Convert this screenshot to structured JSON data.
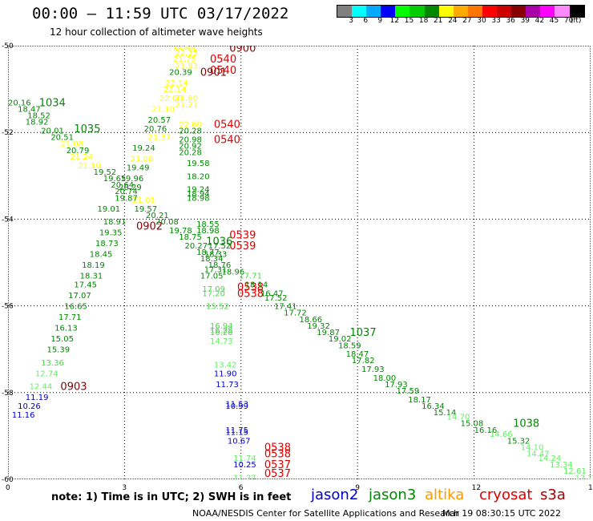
{
  "header": {
    "title": "00:00 – 11:59 UTC 03/17/2022",
    "subtitle": "12 hour collection of altimeter wave heights"
  },
  "colorbar": {
    "colors": [
      "#808080",
      "#00ffff",
      "#00aaff",
      "#0000ff",
      "#00ff00",
      "#00cc00",
      "#008800",
      "#ffff00",
      "#ffaa00",
      "#ff7700",
      "#ff0000",
      "#cc0000",
      "#880000",
      "#aa00aa",
      "#ff00ff",
      "#ff88ff",
      "#000000"
    ],
    "labels": [
      "3",
      "6",
      "9",
      "12",
      "15",
      "18",
      "21",
      "24",
      "27",
      "30",
      "33",
      "36",
      "39",
      "42",
      "45",
      "70",
      "(ft)"
    ]
  },
  "axes": {
    "x_ticks": [
      "0",
      "3",
      "6",
      "9",
      "12",
      "15"
    ],
    "y_ticks": [
      "-50",
      "-52",
      "-54",
      "-56",
      "-58",
      "-60"
    ]
  },
  "legend": {
    "note": "note:  1) Time is in UTC;  2) SWH is in feet",
    "satellites": [
      {
        "name": "jason2",
        "color": "#0000cc"
      },
      {
        "name": "jason3",
        "color": "#008800"
      },
      {
        "name": "altika",
        "color": "#ff9900"
      },
      {
        "name": "cryosat",
        "color": "#dd0000"
      },
      {
        "name": "s3a",
        "color": "#aa0000"
      }
    ],
    "credit": "NOAA/NESDIS Center for Satellite Applications and Research",
    "generated": "Mar 19 08:30:15 UTC 2022"
  },
  "map_data": {
    "lon_range": [
      0,
      15
    ],
    "lat_range": [
      -60,
      -50
    ],
    "stamps": [
      {
        "text": "0900",
        "lon": 5.7,
        "lat": -50.05,
        "color": "#880000"
      },
      {
        "text": "0540",
        "lon": 5.2,
        "lat": -50.3,
        "color": "#dd0000"
      },
      {
        "text": "0540",
        "lon": 5.2,
        "lat": -50.55,
        "color": "#dd0000"
      },
      {
        "text": "0901",
        "lon": 4.95,
        "lat": -50.6,
        "color": "#880000"
      },
      {
        "text": "0540",
        "lon": 5.3,
        "lat": -51.8,
        "color": "#dd0000"
      },
      {
        "text": "0540",
        "lon": 5.3,
        "lat": -52.15,
        "color": "#dd0000"
      },
      {
        "text": "1034",
        "lon": 0.8,
        "lat": -51.3,
        "color": "#008800"
      },
      {
        "text": "1035",
        "lon": 1.7,
        "lat": -51.9,
        "color": "#008800"
      },
      {
        "text": "0902",
        "lon": 3.3,
        "lat": -54.15,
        "color": "#880000"
      },
      {
        "text": "0539",
        "lon": 5.7,
        "lat": -54.35,
        "color": "#dd0000"
      },
      {
        "text": "0539",
        "lon": 5.7,
        "lat": -54.6,
        "color": "#dd0000"
      },
      {
        "text": "1036",
        "lon": 5.1,
        "lat": -54.5,
        "color": "#008800"
      },
      {
        "text": "0538",
        "lon": 5.9,
        "lat": -55.55,
        "color": "#dd0000"
      },
      {
        "text": "0538",
        "lon": 5.9,
        "lat": -55.7,
        "color": "#dd0000"
      },
      {
        "text": "1037",
        "lon": 8.8,
        "lat": -56.6,
        "color": "#008800"
      },
      {
        "text": "0903",
        "lon": 1.35,
        "lat": -57.85,
        "color": "#880000"
      },
      {
        "text": "1038",
        "lon": 13.0,
        "lat": -58.7,
        "color": "#008800"
      },
      {
        "text": "0538",
        "lon": 6.6,
        "lat": -59.25,
        "color": "#dd0000"
      },
      {
        "text": "0538",
        "lon": 6.6,
        "lat": -59.4,
        "color": "#dd0000"
      },
      {
        "text": "0537",
        "lon": 6.6,
        "lat": -59.65,
        "color": "#dd0000"
      },
      {
        "text": "0537",
        "lon": 6.6,
        "lat": -59.85,
        "color": "#dd0000"
      }
    ],
    "points": [
      {
        "text": "22.00",
        "lon": 4.25,
        "lat": -50.0,
        "color": "#ffff00"
      },
      {
        "text": "22.35",
        "lon": 4.3,
        "lat": -50.15,
        "color": "#ffff00"
      },
      {
        "text": "21.75",
        "lon": 4.25,
        "lat": -50.3,
        "color": "#ffff00"
      },
      {
        "text": "21.83",
        "lon": 4.3,
        "lat": -50.45,
        "color": "#ffff00"
      },
      {
        "text": "20.39",
        "lon": 4.15,
        "lat": -50.6,
        "color": "#008800"
      },
      {
        "text": "22.14",
        "lon": 4.05,
        "lat": -50.85,
        "color": "#ffff00"
      },
      {
        "text": "22.14",
        "lon": 4.0,
        "lat": -51.0,
        "color": "#ffff00"
      },
      {
        "text": "22.00",
        "lon": 3.9,
        "lat": -51.2,
        "color": "#ffff00"
      },
      {
        "text": "21.80",
        "lon": 4.3,
        "lat": -51.2,
        "color": "#ffff00"
      },
      {
        "text": "21.21",
        "lon": 4.3,
        "lat": -51.35,
        "color": "#ffff00"
      },
      {
        "text": "21.10",
        "lon": 3.7,
        "lat": -51.45,
        "color": "#ffff00"
      },
      {
        "text": "20.57",
        "lon": 3.6,
        "lat": -51.7,
        "color": "#008800"
      },
      {
        "text": "22.60",
        "lon": 4.4,
        "lat": -51.8,
        "color": "#ffff00"
      },
      {
        "text": "20.76",
        "lon": 3.5,
        "lat": -51.9,
        "color": "#008800"
      },
      {
        "text": "20.28",
        "lon": 4.4,
        "lat": -51.95,
        "color": "#008800"
      },
      {
        "text": "21.37",
        "lon": 3.6,
        "lat": -52.1,
        "color": "#ffff00"
      },
      {
        "text": "20.98",
        "lon": 4.4,
        "lat": -52.15,
        "color": "#008800"
      },
      {
        "text": "19.24",
        "lon": 3.2,
        "lat": -52.35,
        "color": "#008800"
      },
      {
        "text": "20.92",
        "lon": 4.4,
        "lat": -52.3,
        "color": "#008800"
      },
      {
        "text": "20.28",
        "lon": 4.4,
        "lat": -52.45,
        "color": "#008800"
      },
      {
        "text": "21.08",
        "lon": 3.15,
        "lat": -52.6,
        "color": "#ffff00"
      },
      {
        "text": "19.58",
        "lon": 4.6,
        "lat": -52.7,
        "color": "#008800"
      },
      {
        "text": "19.49",
        "lon": 3.05,
        "lat": -52.8,
        "color": "#008800"
      },
      {
        "text": "18.20",
        "lon": 4.6,
        "lat": -53.0,
        "color": "#008800"
      },
      {
        "text": "19.96",
        "lon": 2.9,
        "lat": -53.05,
        "color": "#008800"
      },
      {
        "text": "20.29",
        "lon": 2.85,
        "lat": -53.25,
        "color": "#008800"
      },
      {
        "text": "19.24",
        "lon": 4.6,
        "lat": -53.3,
        "color": "#008800"
      },
      {
        "text": "18.94",
        "lon": 4.6,
        "lat": -53.4,
        "color": "#008800"
      },
      {
        "text": "18.98",
        "lon": 4.6,
        "lat": -53.5,
        "color": "#008800"
      },
      {
        "text": "21.01",
        "lon": 3.2,
        "lat": -53.55,
        "color": "#ffff00"
      },
      {
        "text": "19.57",
        "lon": 3.25,
        "lat": -53.75,
        "color": "#008800"
      },
      {
        "text": "20.21",
        "lon": 3.55,
        "lat": -53.9,
        "color": "#008800"
      },
      {
        "text": "20.16",
        "lon": 0.0,
        "lat": -51.3,
        "color": "#008800"
      },
      {
        "text": "18.47",
        "lon": 0.25,
        "lat": -51.45,
        "color": "#008800"
      },
      {
        "text": "18.52",
        "lon": 0.5,
        "lat": -51.6,
        "color": "#008800"
      },
      {
        "text": "18.92",
        "lon": 0.45,
        "lat": -51.75,
        "color": "#008800"
      },
      {
        "text": "20.01",
        "lon": 0.85,
        "lat": -51.95,
        "color": "#008800"
      },
      {
        "text": "20.51",
        "lon": 1.1,
        "lat": -52.1,
        "color": "#008800"
      },
      {
        "text": "21.08",
        "lon": 1.35,
        "lat": -52.25,
        "color": "#ffff00"
      },
      {
        "text": "20.79",
        "lon": 1.5,
        "lat": -52.4,
        "color": "#008800"
      },
      {
        "text": "21.24",
        "lon": 1.6,
        "lat": -52.55,
        "color": "#ffff00"
      },
      {
        "text": "21.10",
        "lon": 1.8,
        "lat": -52.75,
        "color": "#ffff00"
      },
      {
        "text": "19.52",
        "lon": 2.2,
        "lat": -52.9,
        "color": "#008800"
      },
      {
        "text": "19.65",
        "lon": 2.45,
        "lat": -53.05,
        "color": "#008800"
      },
      {
        "text": "20.64",
        "lon": 2.65,
        "lat": -53.2,
        "color": "#008800"
      },
      {
        "text": "20.74",
        "lon": 2.75,
        "lat": -53.35,
        "color": "#008800"
      },
      {
        "text": "19.87",
        "lon": 2.75,
        "lat": -53.5,
        "color": "#008800"
      },
      {
        "text": "19.01",
        "lon": 2.3,
        "lat": -53.75,
        "color": "#008800"
      },
      {
        "text": "18.91",
        "lon": 2.45,
        "lat": -54.05,
        "color": "#008800"
      },
      {
        "text": "20.08",
        "lon": 3.8,
        "lat": -54.05,
        "color": "#008800"
      },
      {
        "text": "18.55",
        "lon": 4.85,
        "lat": -54.1,
        "color": "#008800"
      },
      {
        "text": "19.78",
        "lon": 4.15,
        "lat": -54.25,
        "color": "#008800"
      },
      {
        "text": "18.98",
        "lon": 4.85,
        "lat": -54.25,
        "color": "#008800"
      },
      {
        "text": "18.75",
        "lon": 4.4,
        "lat": -54.4,
        "color": "#008800"
      },
      {
        "text": "19.35",
        "lon": 2.35,
        "lat": -54.3,
        "color": "#008800"
      },
      {
        "text": "18.73",
        "lon": 2.25,
        "lat": -54.55,
        "color": "#008800"
      },
      {
        "text": "20.27",
        "lon": 4.55,
        "lat": -54.6,
        "color": "#008800"
      },
      {
        "text": "17.52",
        "lon": 5.15,
        "lat": -54.6,
        "color": "#008800"
      },
      {
        "text": "18.77",
        "lon": 4.85,
        "lat": -54.75,
        "color": "#008800"
      },
      {
        "text": "18.33",
        "lon": 5.05,
        "lat": -54.8,
        "color": "#008800"
      },
      {
        "text": "18.45",
        "lon": 2.1,
        "lat": -54.8,
        "color": "#008800"
      },
      {
        "text": "18.34",
        "lon": 4.95,
        "lat": -54.9,
        "color": "#008800"
      },
      {
        "text": "18.19",
        "lon": 1.9,
        "lat": -55.05,
        "color": "#008800"
      },
      {
        "text": "18.76",
        "lon": 5.15,
        "lat": -55.05,
        "color": "#008800"
      },
      {
        "text": "17.31",
        "lon": 5.05,
        "lat": -55.15,
        "color": "#008800"
      },
      {
        "text": "18.96",
        "lon": 5.5,
        "lat": -55.2,
        "color": "#008800"
      },
      {
        "text": "18.31",
        "lon": 1.85,
        "lat": -55.3,
        "color": "#008800"
      },
      {
        "text": "17.05",
        "lon": 4.95,
        "lat": -55.3,
        "color": "#008800"
      },
      {
        "text": "17.71",
        "lon": 5.95,
        "lat": -55.3,
        "color": "#44dd44"
      },
      {
        "text": "17.45",
        "lon": 1.7,
        "lat": -55.5,
        "color": "#008800"
      },
      {
        "text": "18.14",
        "lon": 6.1,
        "lat": -55.5,
        "color": "#008800"
      },
      {
        "text": "17.07",
        "lon": 1.55,
        "lat": -55.75,
        "color": "#008800"
      },
      {
        "text": "17.09",
        "lon": 5.0,
        "lat": -55.6,
        "color": "#44dd44"
      },
      {
        "text": "17.20",
        "lon": 5.0,
        "lat": -55.7,
        "color": "#44dd44"
      },
      {
        "text": "16.47",
        "lon": 6.5,
        "lat": -55.7,
        "color": "#008800"
      },
      {
        "text": "17.52",
        "lon": 6.6,
        "lat": -55.8,
        "color": "#008800"
      },
      {
        "text": "16.65",
        "lon": 1.45,
        "lat": -56.0,
        "color": "#008800"
      },
      {
        "text": "15.52",
        "lon": 5.1,
        "lat": -56.0,
        "color": "#44dd44"
      },
      {
        "text": "17.41",
        "lon": 6.85,
        "lat": -56.0,
        "color": "#008800"
      },
      {
        "text": "17.71",
        "lon": 1.3,
        "lat": -56.25,
        "color": "#008800"
      },
      {
        "text": "17.72",
        "lon": 7.1,
        "lat": -56.15,
        "color": "#008800"
      },
      {
        "text": "18.66",
        "lon": 7.5,
        "lat": -56.3,
        "color": "#008800"
      },
      {
        "text": "16.13",
        "lon": 1.2,
        "lat": -56.5,
        "color": "#008800"
      },
      {
        "text": "16.94",
        "lon": 5.2,
        "lat": -56.45,
        "color": "#44dd44"
      },
      {
        "text": "19.32",
        "lon": 7.7,
        "lat": -56.45,
        "color": "#008800"
      },
      {
        "text": "16.28",
        "lon": 5.2,
        "lat": -56.55,
        "color": "#44dd44"
      },
      {
        "text": "16.28",
        "lon": 5.2,
        "lat": -56.6,
        "color": "#44dd44"
      },
      {
        "text": "19.87",
        "lon": 7.95,
        "lat": -56.6,
        "color": "#008800"
      },
      {
        "text": "15.05",
        "lon": 1.1,
        "lat": -56.75,
        "color": "#008800"
      },
      {
        "text": "14.73",
        "lon": 5.2,
        "lat": -56.8,
        "color": "#66ee66"
      },
      {
        "text": "19.02",
        "lon": 8.25,
        "lat": -56.75,
        "color": "#008800"
      },
      {
        "text": "15.39",
        "lon": 1.0,
        "lat": -57.0,
        "color": "#008800"
      },
      {
        "text": "18.59",
        "lon": 8.5,
        "lat": -56.9,
        "color": "#008800"
      },
      {
        "text": "18.47",
        "lon": 8.7,
        "lat": -57.1,
        "color": "#008800"
      },
      {
        "text": "13.36",
        "lon": 0.85,
        "lat": -57.3,
        "color": "#44dd44"
      },
      {
        "text": "17.82",
        "lon": 8.85,
        "lat": -57.25,
        "color": "#008800"
      },
      {
        "text": "13.42",
        "lon": 5.3,
        "lat": -57.35,
        "color": "#66ee66"
      },
      {
        "text": "12.74",
        "lon": 0.7,
        "lat": -57.55,
        "color": "#66ee66"
      },
      {
        "text": "17.93",
        "lon": 9.1,
        "lat": -57.45,
        "color": "#008800"
      },
      {
        "text": "11.90",
        "lon": 5.3,
        "lat": -57.55,
        "color": "#0000cc"
      },
      {
        "text": "18.00",
        "lon": 9.4,
        "lat": -57.65,
        "color": "#008800"
      },
      {
        "text": "12.44",
        "lon": 0.55,
        "lat": -57.85,
        "color": "#66ee66"
      },
      {
        "text": "11.73",
        "lon": 5.35,
        "lat": -57.8,
        "color": "#0000cc"
      },
      {
        "text": "17.93",
        "lon": 9.7,
        "lat": -57.8,
        "color": "#008800"
      },
      {
        "text": "17.59",
        "lon": 10.0,
        "lat": -57.95,
        "color": "#008800"
      },
      {
        "text": "11.19",
        "lon": 0.45,
        "lat": -58.1,
        "color": "#0000cc"
      },
      {
        "text": "18.17",
        "lon": 10.3,
        "lat": -58.15,
        "color": "#008800"
      },
      {
        "text": "10.26",
        "lon": 0.25,
        "lat": -58.3,
        "color": "#0000cc"
      },
      {
        "text": "11.53",
        "lon": 5.6,
        "lat": -58.25,
        "color": "#0000cc"
      },
      {
        "text": "10.99",
        "lon": 5.6,
        "lat": -58.3,
        "color": "#0000cc"
      },
      {
        "text": "16.34",
        "lon": 10.65,
        "lat": -58.3,
        "color": "#008800"
      },
      {
        "text": "11.16",
        "lon": 0.1,
        "lat": -58.5,
        "color": "#0000cc"
      },
      {
        "text": "15.14",
        "lon": 10.95,
        "lat": -58.45,
        "color": "#008800"
      },
      {
        "text": "14.70",
        "lon": 11.3,
        "lat": -58.55,
        "color": "#66ee66"
      },
      {
        "text": "15.08",
        "lon": 11.65,
        "lat": -58.7,
        "color": "#008800"
      },
      {
        "text": "11.75",
        "lon": 5.6,
        "lat": -58.85,
        "color": "#0000cc"
      },
      {
        "text": "11.15",
        "lon": 5.6,
        "lat": -58.9,
        "color": "#0000cc"
      },
      {
        "text": "16.16",
        "lon": 12.0,
        "lat": -58.85,
        "color": "#008800"
      },
      {
        "text": "14.66",
        "lon": 12.4,
        "lat": -58.95,
        "color": "#66ee66"
      },
      {
        "text": "15.32",
        "lon": 12.85,
        "lat": -59.1,
        "color": "#008800"
      },
      {
        "text": "10.67",
        "lon": 5.65,
        "lat": -59.1,
        "color": "#0000cc"
      },
      {
        "text": "14.10",
        "lon": 13.2,
        "lat": -59.25,
        "color": "#66ee66"
      },
      {
        "text": "14.47",
        "lon": 13.35,
        "lat": -59.4,
        "color": "#66ee66"
      },
      {
        "text": "14.24",
        "lon": 13.65,
        "lat": -59.5,
        "color": "#66ee66"
      },
      {
        "text": "11.74",
        "lon": 5.8,
        "lat": -59.5,
        "color": "#66ee66"
      },
      {
        "text": "10.25",
        "lon": 5.8,
        "lat": -59.65,
        "color": "#0000cc"
      },
      {
        "text": "13.34",
        "lon": 13.95,
        "lat": -59.65,
        "color": "#66ee66"
      },
      {
        "text": "12.61",
        "lon": 14.3,
        "lat": -59.8,
        "color": "#66ee66"
      },
      {
        "text": "12.29",
        "lon": 14.6,
        "lat": -59.95,
        "color": "#66ee66"
      },
      {
        "text": "13.",
        "lon": 14.85,
        "lat": -60.05,
        "color": "#66ee66"
      },
      {
        "text": "11.27",
        "lon": 5.8,
        "lat": -59.95,
        "color": "#66ee66"
      },
      {
        "text": "9.42",
        "lon": 5.95,
        "lat": -60.05,
        "color": "#0000cc"
      }
    ]
  }
}
